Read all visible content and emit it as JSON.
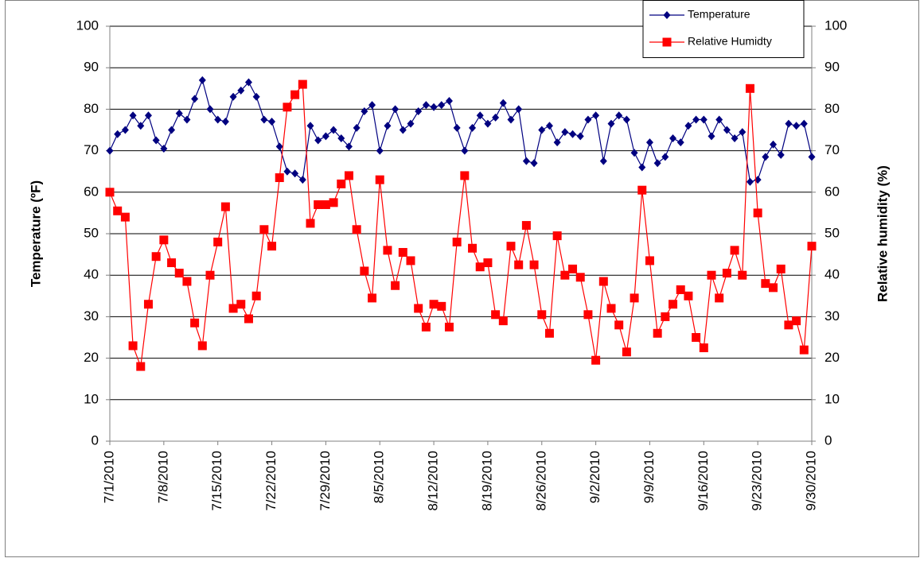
{
  "chart_data": {
    "type": "line",
    "y_label": "Temperature (ºF)",
    "y2_label": "Relative humidity (%)",
    "categories": [
      "7/1/2010",
      null,
      null,
      null,
      null,
      null,
      null,
      "7/8/2010",
      null,
      null,
      null,
      null,
      null,
      null,
      "7/15/2010",
      null,
      null,
      null,
      null,
      null,
      null,
      "7/22/2010",
      null,
      null,
      null,
      null,
      null,
      null,
      "7/29/2010",
      null,
      null,
      null,
      null,
      null,
      null,
      "8/5/2010",
      null,
      null,
      null,
      null,
      null,
      null,
      "8/12/2010",
      null,
      null,
      null,
      null,
      null,
      null,
      "8/19/2010",
      null,
      null,
      null,
      null,
      null,
      null,
      "8/26/2010",
      null,
      null,
      null,
      null,
      null,
      null,
      "9/2/2010",
      null,
      null,
      null,
      null,
      null,
      null,
      "9/9/2010",
      null,
      null,
      null,
      null,
      null,
      null,
      "9/16/2010",
      null,
      null,
      null,
      null,
      null,
      null,
      "9/23/2010",
      null,
      null,
      null,
      null,
      null,
      null,
      "9/30/2010"
    ],
    "series": [
      {
        "name": "Temperature",
        "color": "#000080",
        "marker": "diamond",
        "values": [
          70,
          74,
          75,
          78.5,
          76,
          78.5,
          72.5,
          70.5,
          75,
          79,
          77.5,
          82.5,
          87,
          80,
          77.5,
          77,
          83,
          84.5,
          86.5,
          83,
          77.5,
          77,
          71,
          65,
          64.5,
          63,
          76,
          72.5,
          73.5,
          75,
          73,
          71,
          75.5,
          79.5,
          81,
          70,
          76,
          80,
          75,
          76.5,
          79.5,
          81,
          80.5,
          81,
          82,
          75.5,
          70,
          75.5,
          78.5,
          76.5,
          78,
          81.5,
          77.5,
          80,
          67.5,
          67,
          75,
          76,
          72,
          74.5,
          74,
          73.5,
          77.5,
          78.5,
          67.5,
          76.5,
          78.5,
          77.5,
          69.5,
          66,
          72,
          67,
          68.5,
          73,
          72,
          76,
          77.5,
          77.5,
          73.5,
          77.5,
          75,
          73,
          74.5,
          62.5,
          63,
          68.5,
          71.5,
          69,
          76.5,
          76,
          76.5,
          68.5
        ]
      },
      {
        "name": "Relative Humidty",
        "color": "#ff0000",
        "marker": "square",
        "axis": "y2",
        "values": [
          60,
          55.5,
          54,
          23,
          18,
          33,
          44.5,
          48.5,
          43,
          40.5,
          38.5,
          28.5,
          23,
          40,
          48,
          56.5,
          32,
          33,
          29.5,
          35,
          51,
          47,
          63.5,
          80.5,
          83.5,
          86,
          52.5,
          57,
          57,
          57.5,
          62,
          64,
          51,
          41,
          34.5,
          63,
          46,
          37.5,
          45.5,
          43.5,
          32,
          27.5,
          33,
          32.5,
          27.5,
          48,
          64,
          46.5,
          42,
          43,
          30.5,
          29,
          47,
          42.5,
          52,
          42.5,
          30.5,
          26,
          49.5,
          40,
          41.5,
          39.5,
          30.5,
          19.5,
          38.5,
          32,
          28,
          21.5,
          34.5,
          60.5,
          43.5,
          26,
          30,
          33,
          36.5,
          35,
          25,
          22.5,
          40,
          34.5,
          40.5,
          46,
          40,
          85,
          55,
          38,
          37,
          41.5,
          28,
          29,
          22,
          47
        ]
      }
    ],
    "ylim": [
      0,
      100
    ],
    "yticks": [
      0,
      10,
      20,
      30,
      40,
      50,
      60,
      70,
      80,
      90,
      100
    ],
    "y2lim": [
      0,
      100
    ],
    "y2ticks": [
      0,
      10,
      20,
      30,
      40,
      50,
      60,
      70,
      80,
      90,
      100
    ],
    "grid": true,
    "legend": "top-right"
  }
}
